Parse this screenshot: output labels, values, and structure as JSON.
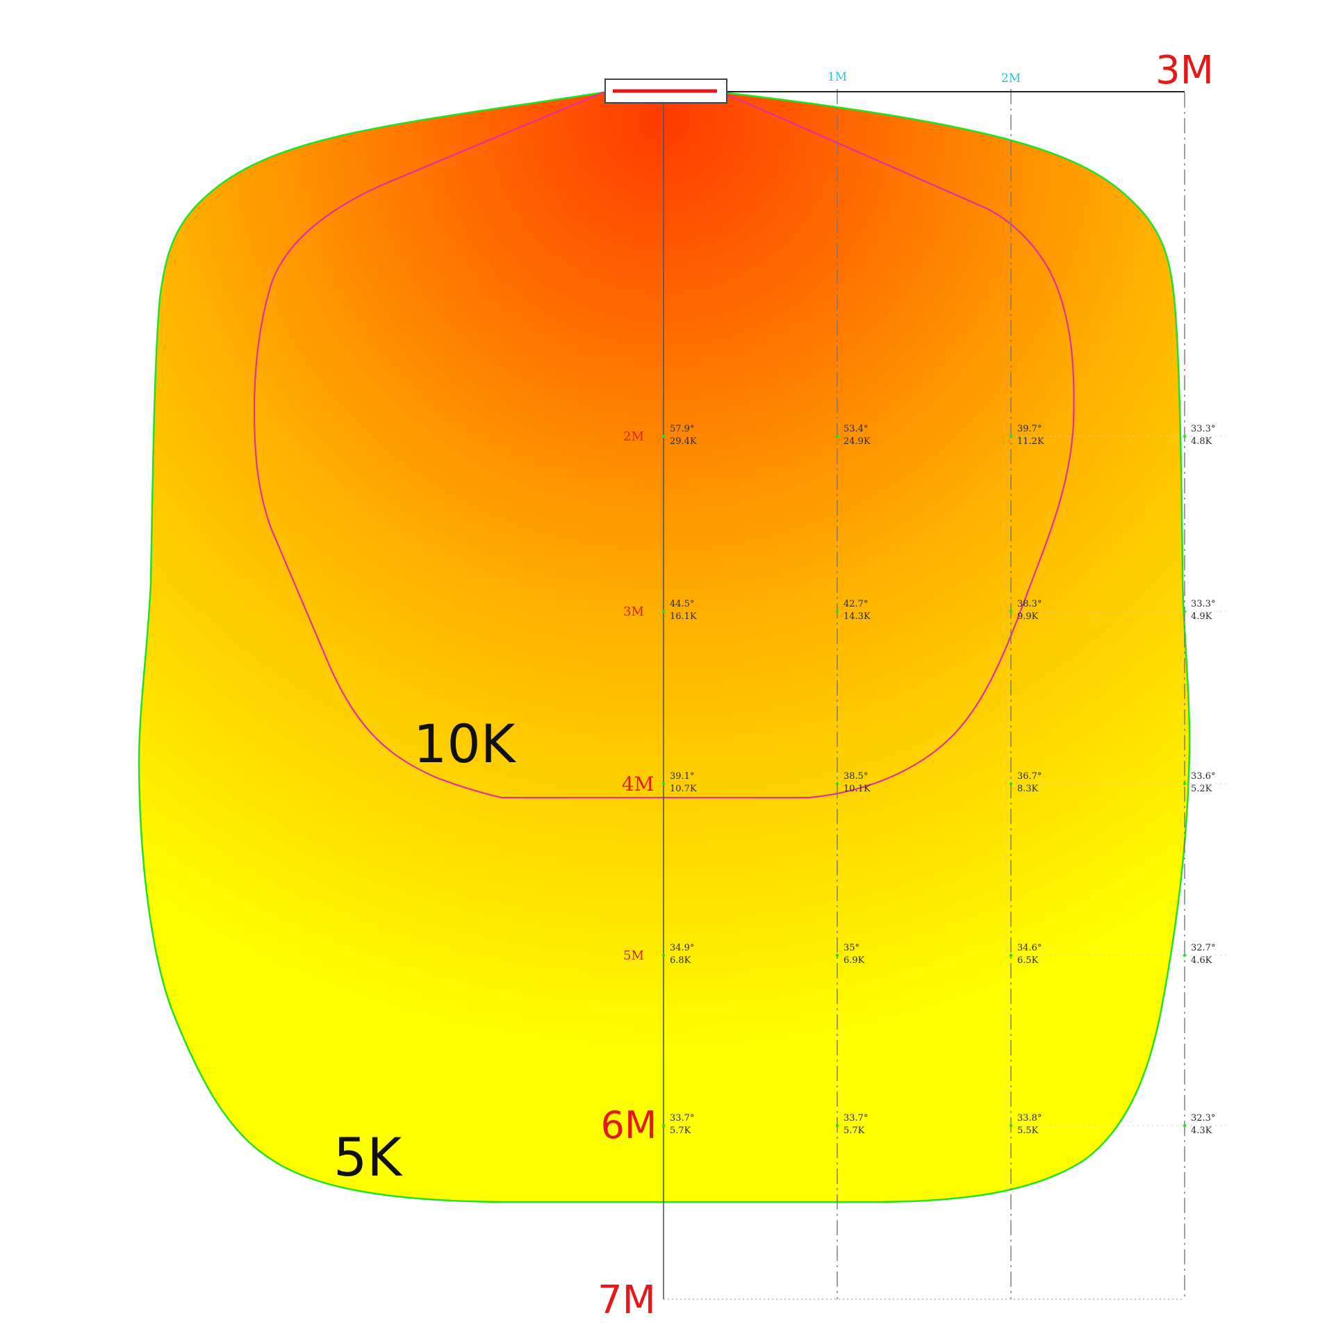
{
  "colors": {
    "outer_outline": "#22e022",
    "inner_outline": "#e0309a",
    "hot": "#ff3a00",
    "mid": "#ffb400",
    "cool": "#ffff00",
    "axis_red": "#e41a1a",
    "col_cyan": "#22c8d8",
    "value_text": "#2a2a2a",
    "zone_text": "#111111"
  },
  "zones": {
    "inner_label": "10K",
    "outer_label": "5K"
  },
  "axes": {
    "columns": [
      {
        "label": "1M",
        "style": "small-cyan"
      },
      {
        "label": "2M",
        "style": "small-cyan"
      },
      {
        "label": "3M",
        "style": "large-red"
      }
    ],
    "end_label": "7M"
  },
  "rows": [
    {
      "label": "2M",
      "label_style": "small",
      "cells": [
        {
          "angle": "57.9°",
          "lux": "29.4K"
        },
        {
          "angle": "53.4°",
          "lux": "24.9K"
        },
        {
          "angle": "39.7°",
          "lux": "11.2K"
        },
        {
          "angle": "33.3°",
          "lux": "4.8K"
        }
      ]
    },
    {
      "label": "3M",
      "label_style": "small",
      "cells": [
        {
          "angle": "44.5°",
          "lux": "16.1K"
        },
        {
          "angle": "42.7°",
          "lux": "14.3K"
        },
        {
          "angle": "38.3°",
          "lux": "9.9K"
        },
        {
          "angle": "33.3°",
          "lux": "4.9K"
        }
      ]
    },
    {
      "label": "4M",
      "label_style": "medium",
      "cells": [
        {
          "angle": "39.1°",
          "lux": "10.7K"
        },
        {
          "angle": "38.5°",
          "lux": "10.1K"
        },
        {
          "angle": "36.7°",
          "lux": "8.3K"
        },
        {
          "angle": "33.6°",
          "lux": "5.2K"
        }
      ]
    },
    {
      "label": "5M",
      "label_style": "small",
      "cells": [
        {
          "angle": "34.9°",
          "lux": "6.8K"
        },
        {
          "angle": "35°",
          "lux": "6.9K"
        },
        {
          "angle": "34.6°",
          "lux": "6.5K"
        },
        {
          "angle": "32.7°",
          "lux": "4.6K"
        }
      ]
    },
    {
      "label": "6M",
      "label_style": "large",
      "cells": [
        {
          "angle": "33.7°",
          "lux": "5.7K"
        },
        {
          "angle": "33.7°",
          "lux": "5.7K"
        },
        {
          "angle": "33.8°",
          "lux": "5.5K"
        },
        {
          "angle": "32.3°",
          "lux": "4.3K"
        }
      ]
    }
  ]
}
